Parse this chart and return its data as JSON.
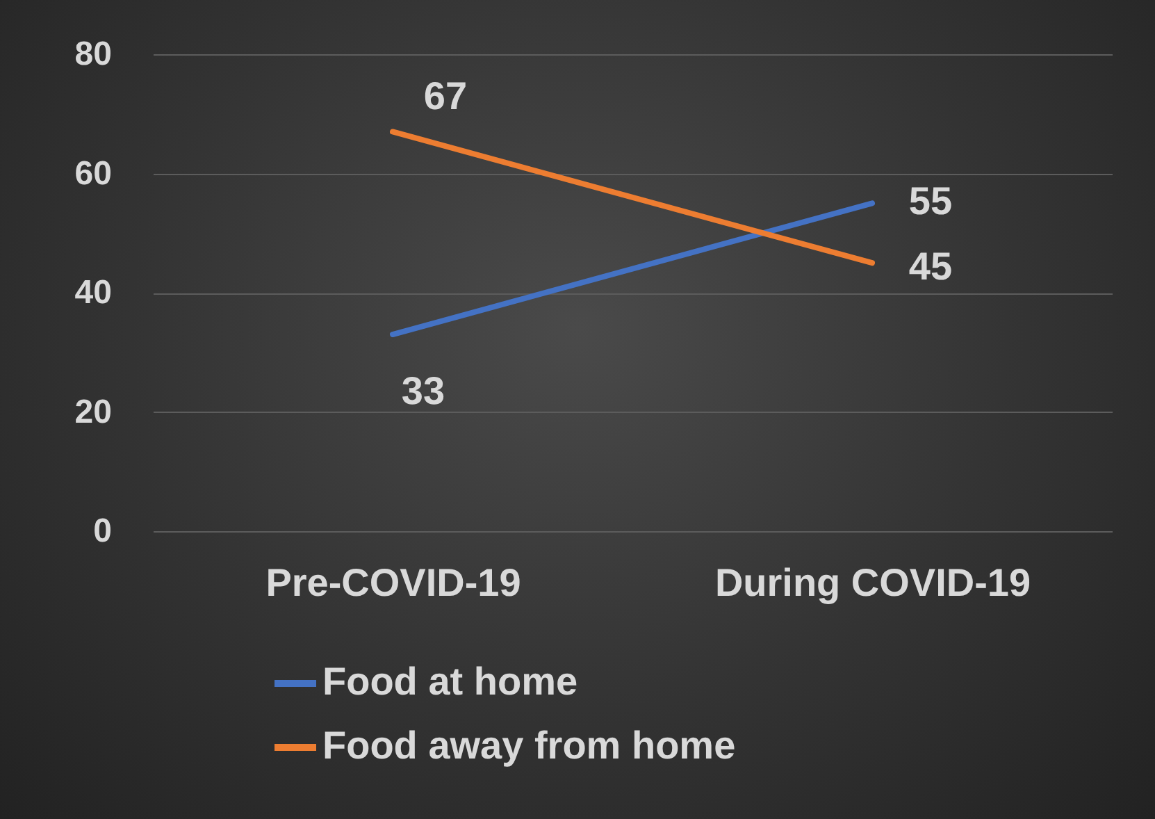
{
  "chart_data": {
    "type": "line",
    "categories": [
      "Pre-COVID-19",
      "During COVID-19"
    ],
    "series": [
      {
        "name": "Food at home",
        "color": "#4472c4",
        "values": [
          33,
          55
        ]
      },
      {
        "name": "Food away from home",
        "color": "#ed7d31",
        "values": [
          67,
          45
        ]
      }
    ],
    "ylim": [
      0,
      80
    ],
    "yticks": [
      0,
      20,
      40,
      60,
      80
    ],
    "grid": "y",
    "legend": "bottom",
    "marker": "none",
    "line_style": "solid",
    "data_labels": true
  }
}
